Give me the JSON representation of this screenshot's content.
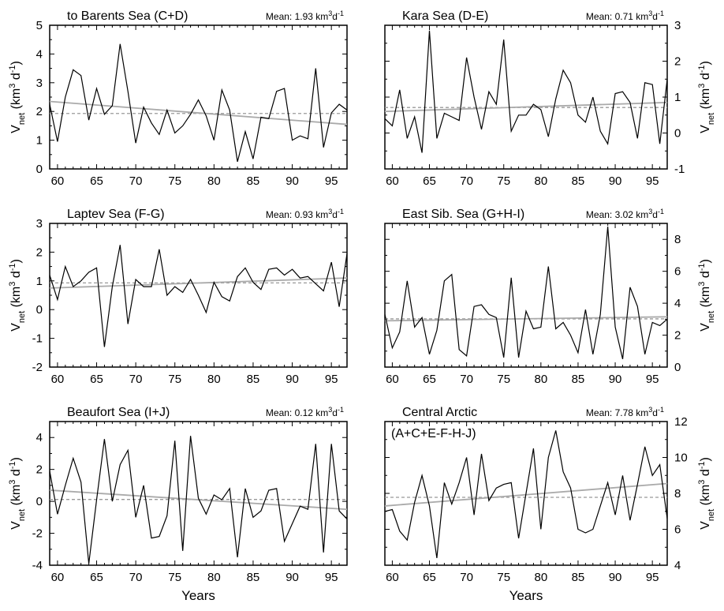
{
  "ylabel": {
    "main": "V",
    "sub": "net",
    "rest": " (km",
    "sup": "3",
    "rest2": " d",
    "sup2": "-1",
    "end": ")"
  },
  "xlabel": "Years",
  "x_ticks": [
    60,
    65,
    70,
    75,
    80,
    85,
    90,
    95
  ],
  "x_tick_labels": [
    "60",
    "65",
    "70",
    "75",
    "80",
    "85",
    "90",
    "95"
  ],
  "mean_prefix": "Mean: ",
  "mean_unit": {
    "a": " km",
    "sup": "3",
    "b": "d",
    "sup2": "-1"
  },
  "chart_data": [
    {
      "type": "line",
      "title": "to Barents Sea (C+D)",
      "title2": "",
      "mean": "1.93",
      "yaxis": "left",
      "ylim": [
        0,
        5
      ],
      "yticks": [
        0,
        1,
        2,
        3,
        4,
        5
      ],
      "xlim": [
        59,
        97
      ],
      "x": [
        59,
        60,
        61,
        62,
        63,
        64,
        65,
        66,
        67,
        68,
        69,
        70,
        71,
        72,
        73,
        74,
        75,
        76,
        77,
        78,
        79,
        80,
        81,
        82,
        83,
        84,
        85,
        86,
        87,
        88,
        89,
        90,
        91,
        92,
        93,
        94,
        95,
        96,
        97
      ],
      "values": [
        2.25,
        0.95,
        2.5,
        3.45,
        3.25,
        1.7,
        2.8,
        1.9,
        2.2,
        4.35,
        2.7,
        0.9,
        2.15,
        1.6,
        1.2,
        2.05,
        1.25,
        1.5,
        1.9,
        2.4,
        1.85,
        1.0,
        2.75,
        2.05,
        0.25,
        1.3,
        0.35,
        1.8,
        1.75,
        2.7,
        2.8,
        1.0,
        1.15,
        1.05,
        3.5,
        0.75,
        1.95,
        2.25,
        2.05
      ],
      "trend": [
        2.35,
        1.55
      ],
      "mean_value": 1.93
    },
    {
      "type": "line",
      "title": "Kara Sea (D-E)",
      "title2": "",
      "mean": "0.71",
      "yaxis": "right",
      "ylim": [
        -1,
        3
      ],
      "yticks": [
        -1,
        0,
        1,
        2,
        3
      ],
      "xlim": [
        59,
        97
      ],
      "x": [
        59,
        60,
        61,
        62,
        63,
        64,
        65,
        66,
        67,
        68,
        69,
        70,
        71,
        72,
        73,
        74,
        75,
        76,
        77,
        78,
        79,
        80,
        81,
        82,
        83,
        84,
        85,
        86,
        87,
        88,
        89,
        90,
        91,
        92,
        93,
        94,
        95,
        96,
        97
      ],
      "values": [
        0.4,
        0.2,
        1.2,
        -0.15,
        0.45,
        -0.55,
        2.85,
        -0.15,
        0.55,
        0.45,
        0.35,
        2.1,
        1.0,
        0.1,
        1.15,
        0.8,
        2.6,
        0.05,
        0.5,
        0.5,
        0.8,
        0.65,
        -0.1,
        0.95,
        1.75,
        1.4,
        0.5,
        0.3,
        1.0,
        0.05,
        -0.3,
        1.1,
        1.15,
        0.85,
        -0.15,
        1.4,
        1.35,
        -0.3,
        1.5
      ],
      "trend": [
        0.6,
        0.85
      ],
      "mean_value": 0.71
    },
    {
      "type": "line",
      "title": "Laptev Sea (F-G)",
      "title2": "",
      "mean": "0.93",
      "yaxis": "left",
      "ylim": [
        -2,
        3
      ],
      "yticks": [
        -2,
        -1,
        0,
        1,
        2,
        3
      ],
      "xlim": [
        59,
        97
      ],
      "x": [
        59,
        60,
        61,
        62,
        63,
        64,
        65,
        66,
        67,
        68,
        69,
        70,
        71,
        72,
        73,
        74,
        75,
        76,
        77,
        78,
        79,
        80,
        81,
        82,
        83,
        84,
        85,
        86,
        87,
        88,
        89,
        90,
        91,
        92,
        93,
        94,
        95,
        96,
        97
      ],
      "values": [
        1.2,
        0.35,
        1.5,
        0.8,
        1.0,
        1.3,
        1.45,
        -1.3,
        0.8,
        2.25,
        -0.5,
        1.05,
        0.8,
        0.8,
        2.1,
        0.5,
        0.8,
        0.6,
        1.05,
        0.5,
        -0.1,
        0.95,
        0.45,
        0.3,
        1.15,
        1.45,
        0.95,
        0.7,
        1.4,
        1.45,
        1.2,
        1.4,
        1.1,
        1.15,
        0.9,
        0.65,
        1.65,
        0.1,
        1.95
      ],
      "trend": [
        0.75,
        1.1
      ],
      "mean_value": 0.93
    },
    {
      "type": "line",
      "title": "East Sib. Sea (G+H-I)",
      "title2": "",
      "mean": "3.02",
      "yaxis": "right",
      "ylim": [
        0,
        9
      ],
      "yticks": [
        0,
        2,
        4,
        6,
        8
      ],
      "xlim": [
        59,
        97
      ],
      "x": [
        59,
        60,
        61,
        62,
        63,
        64,
        65,
        66,
        67,
        68,
        69,
        70,
        71,
        72,
        73,
        74,
        75,
        76,
        77,
        78,
        79,
        80,
        81,
        82,
        83,
        84,
        85,
        86,
        87,
        88,
        89,
        90,
        91,
        92,
        93,
        94,
        95,
        96,
        97
      ],
      "values": [
        3.3,
        1.2,
        2.2,
        5.4,
        2.5,
        3.1,
        0.8,
        2.3,
        5.4,
        5.8,
        1.1,
        0.7,
        3.8,
        3.9,
        3.3,
        3.1,
        0.6,
        5.6,
        0.6,
        3.5,
        2.4,
        2.5,
        6.3,
        2.4,
        2.8,
        2.0,
        0.9,
        3.6,
        0.8,
        3.3,
        8.8,
        2.5,
        0.5,
        5.0,
        3.8,
        0.8,
        2.8,
        2.6,
        3.0
      ],
      "trend": [
        2.9,
        3.15
      ],
      "mean_value": 3.02
    },
    {
      "type": "line",
      "title": "Beaufort Sea (I+J)",
      "title2": "",
      "mean": "0.12",
      "yaxis": "left",
      "ylim": [
        -4,
        5
      ],
      "yticks": [
        -4,
        -2,
        0,
        2,
        4
      ],
      "xlim": [
        59,
        97
      ],
      "x": [
        59,
        60,
        61,
        62,
        63,
        64,
        65,
        66,
        67,
        68,
        69,
        70,
        71,
        72,
        73,
        74,
        75,
        76,
        77,
        78,
        79,
        80,
        81,
        82,
        83,
        84,
        85,
        86,
        87,
        88,
        89,
        90,
        91,
        92,
        93,
        94,
        95,
        96,
        97
      ],
      "values": [
        1.9,
        -0.8,
        1.0,
        2.7,
        1.2,
        -3.9,
        0.1,
        3.9,
        0.0,
        2.3,
        3.2,
        -1.0,
        1.0,
        -2.3,
        -2.2,
        -0.9,
        3.8,
        -3.1,
        4.1,
        0.2,
        -0.8,
        0.4,
        0.1,
        0.8,
        -3.5,
        0.8,
        -1.0,
        -0.6,
        0.7,
        0.8,
        -2.5,
        -1.4,
        -0.3,
        -0.5,
        3.6,
        -3.2,
        3.6,
        -0.6,
        -1.1
      ],
      "trend": [
        0.7,
        -0.5
      ],
      "mean_value": 0.12
    },
    {
      "type": "line",
      "title": "Central Arctic",
      "title2": "(A+C+E-F-H-J)",
      "mean": "7.78",
      "yaxis": "right",
      "ylim": [
        4,
        12
      ],
      "yticks": [
        4,
        6,
        8,
        10,
        12
      ],
      "xlim": [
        59,
        97
      ],
      "x": [
        59,
        60,
        61,
        62,
        63,
        64,
        65,
        66,
        67,
        68,
        69,
        70,
        71,
        72,
        73,
        74,
        75,
        76,
        77,
        78,
        79,
        80,
        81,
        82,
        83,
        84,
        85,
        86,
        87,
        88,
        89,
        90,
        91,
        92,
        93,
        94,
        95,
        96,
        97
      ],
      "values": [
        7.0,
        7.1,
        5.9,
        5.4,
        7.5,
        9.0,
        7.3,
        4.4,
        8.6,
        7.4,
        8.6,
        10.0,
        6.8,
        10.2,
        7.6,
        8.3,
        8.5,
        8.6,
        5.5,
        8.0,
        10.5,
        6.0,
        10.0,
        11.5,
        9.2,
        8.3,
        6.0,
        5.8,
        6.0,
        7.3,
        8.6,
        6.8,
        9.0,
        6.5,
        8.5,
        10.6,
        9.0,
        9.6,
        6.6
      ],
      "trend": [
        7.3,
        8.55
      ],
      "mean_value": 7.78
    }
  ]
}
